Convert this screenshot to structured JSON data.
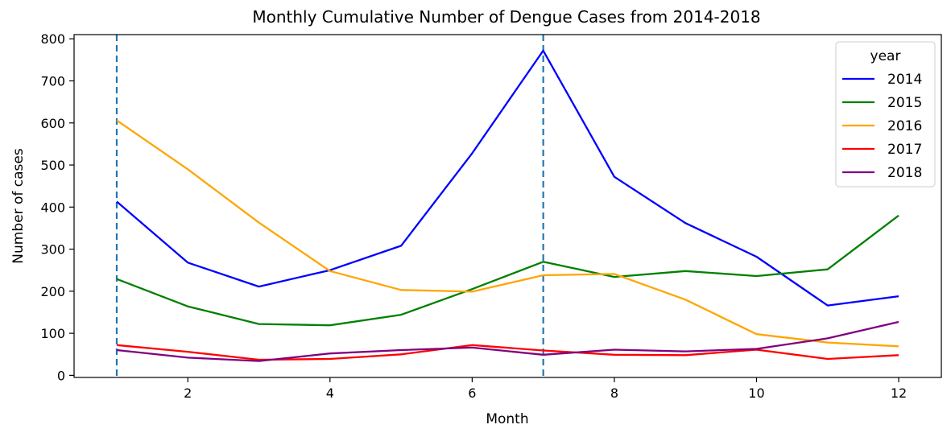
{
  "chart_data": {
    "type": "line",
    "title": "Monthly Cumulative Number of Dengue Cases from 2014-2018",
    "xlabel": "Month",
    "ylabel": "Number of cases",
    "x": [
      1,
      2,
      3,
      4,
      5,
      6,
      7,
      8,
      9,
      10,
      11,
      12
    ],
    "xlim": [
      0.4,
      12.6
    ],
    "ylim": [
      -5,
      810
    ],
    "xticks": [
      2,
      4,
      6,
      8,
      10,
      12
    ],
    "yticks": [
      0,
      100,
      200,
      300,
      400,
      500,
      600,
      700,
      800
    ],
    "vlines": [
      1,
      7
    ],
    "vline_color": "#1f77b4",
    "grid": false,
    "legend": {
      "title": "year",
      "placement": "top-right"
    },
    "series": [
      {
        "name": "2014",
        "color": "#0000ff",
        "values": [
          413,
          268,
          211,
          250,
          308,
          528,
          772,
          472,
          362,
          282,
          166,
          188
        ]
      },
      {
        "name": "2015",
        "color": "#008000",
        "values": [
          229,
          164,
          122,
          119,
          144,
          205,
          270,
          234,
          248,
          236,
          252,
          380
        ]
      },
      {
        "name": "2016",
        "color": "#ffa500",
        "values": [
          606,
          490,
          363,
          248,
          203,
          199,
          238,
          241,
          180,
          98,
          78,
          69
        ]
      },
      {
        "name": "2017",
        "color": "#ff0000",
        "values": [
          72,
          56,
          37,
          39,
          50,
          72,
          59,
          49,
          48,
          61,
          39,
          48
        ]
      },
      {
        "name": "2018",
        "color": "#800080",
        "values": [
          60,
          42,
          34,
          52,
          60,
          66,
          49,
          61,
          57,
          63,
          88,
          127
        ]
      }
    ]
  }
}
